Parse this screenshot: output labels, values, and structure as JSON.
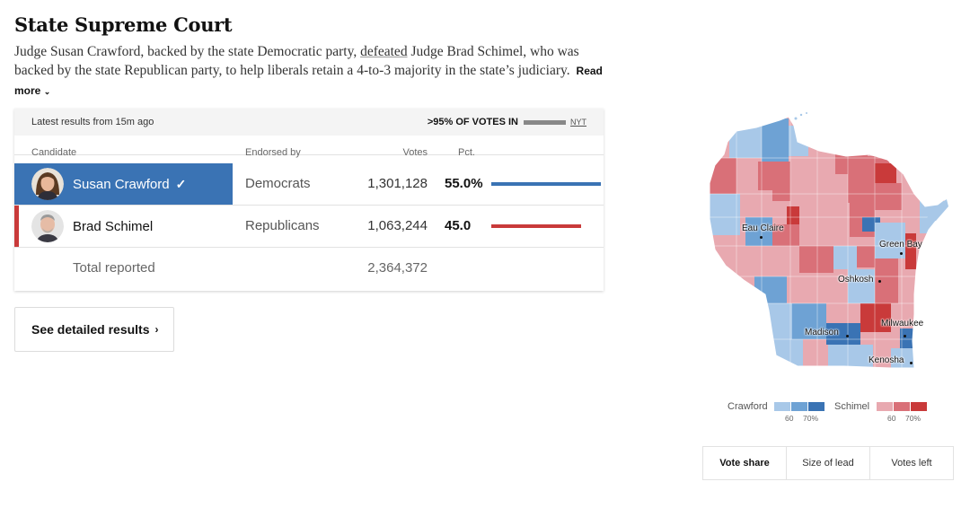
{
  "race": {
    "title": "State Supreme Court",
    "summary_before": "Judge Susan Crawford, backed by the state Democratic party, ",
    "summary_link": "defeated",
    "summary_after": " Judge Brad Schimel, who was backed by the state Republican party, to help liberals retain a 4-to-3 majority in the state’s judiciary.",
    "read_more": "Read more"
  },
  "table": {
    "updated": "Latest results from 15m ago",
    "reporting": ">95% OF VOTES IN",
    "source": "NYT",
    "headers": {
      "candidate": "Candidate",
      "endorsed": "Endorsed by",
      "votes": "Votes",
      "pct": "Pct."
    },
    "rows": [
      {
        "name": "Susan Crawford",
        "endorsed": "Democrats",
        "votes": "1,301,128",
        "pct": "55.0%",
        "share": 0.55,
        "color": "#3a73b4",
        "winner": true
      },
      {
        "name": "Brad Schimel",
        "endorsed": "Republicans",
        "votes": "1,063,244",
        "pct": "45.0",
        "share": 0.45,
        "color": "#c93a3a",
        "winner": false
      }
    ],
    "total_label": "Total reported",
    "total_votes": "2,364,372"
  },
  "detail_button": "See detailed results",
  "map": {
    "cities": [
      "Eau Claire",
      "Green Bay",
      "Oshkosh",
      "Madison",
      "Milwaukee",
      "Kenosha"
    ],
    "colors": {
      "dem": [
        "#a8c8e8",
        "#6ea2d4",
        "#3a73b4"
      ],
      "rep": [
        "#e8a9b0",
        "#d97078",
        "#c93a3a"
      ]
    }
  },
  "legend": {
    "dem_label": "Crawford",
    "rep_label": "Schimel",
    "tick_60": "60",
    "tick_70": "70%"
  },
  "toggle": {
    "options": [
      "Vote share",
      "Size of lead",
      "Votes left"
    ],
    "active": "Vote share"
  }
}
